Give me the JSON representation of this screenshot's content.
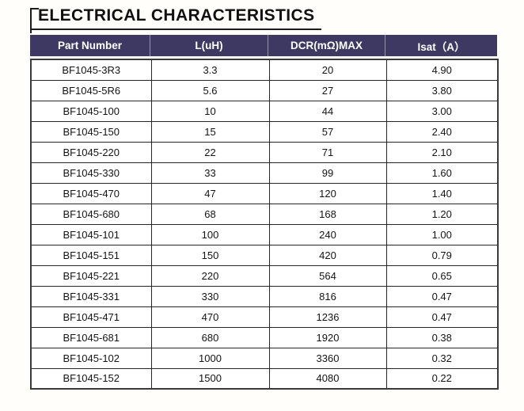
{
  "title": "ELECTRICAL CHARACTERISTICS",
  "table": {
    "headers": [
      "Part Number",
      "L(uH)",
      "DCR(mΩ)MAX",
      "Isat（A）"
    ],
    "rows": [
      [
        "BF1045-3R3",
        "3.3",
        "20",
        "4.90"
      ],
      [
        "BF1045-5R6",
        "5.6",
        "27",
        "3.80"
      ],
      [
        "BF1045-100",
        "10",
        "44",
        "3.00"
      ],
      [
        "BF1045-150",
        "15",
        "57",
        "2.40"
      ],
      [
        "BF1045-220",
        "22",
        "71",
        "2.10"
      ],
      [
        "BF1045-330",
        "33",
        "99",
        "1.60"
      ],
      [
        "BF1045-470",
        "47",
        "120",
        "1.40"
      ],
      [
        "BF1045-680",
        "68",
        "168",
        "1.20"
      ],
      [
        "BF1045-101",
        "100",
        "240",
        "1.00"
      ],
      [
        "BF1045-151",
        "150",
        "420",
        "0.79"
      ],
      [
        "BF1045-221",
        "220",
        "564",
        "0.65"
      ],
      [
        "BF1045-331",
        "330",
        "816",
        "0.47"
      ],
      [
        "BF1045-471",
        "470",
        "1236",
        "0.47"
      ],
      [
        "BF1045-681",
        "680",
        "1920",
        "0.38"
      ],
      [
        "BF1045-102",
        "1000",
        "3360",
        "0.32"
      ],
      [
        "BF1045-152",
        "1500",
        "4080",
        "0.22"
      ]
    ],
    "colors": {
      "header_bg": "#3d3963",
      "header_text": "#ffffff",
      "border": "#262626",
      "outer_border": "#3a3a3a",
      "body_text": "#141414",
      "title_text": "#101010"
    }
  }
}
